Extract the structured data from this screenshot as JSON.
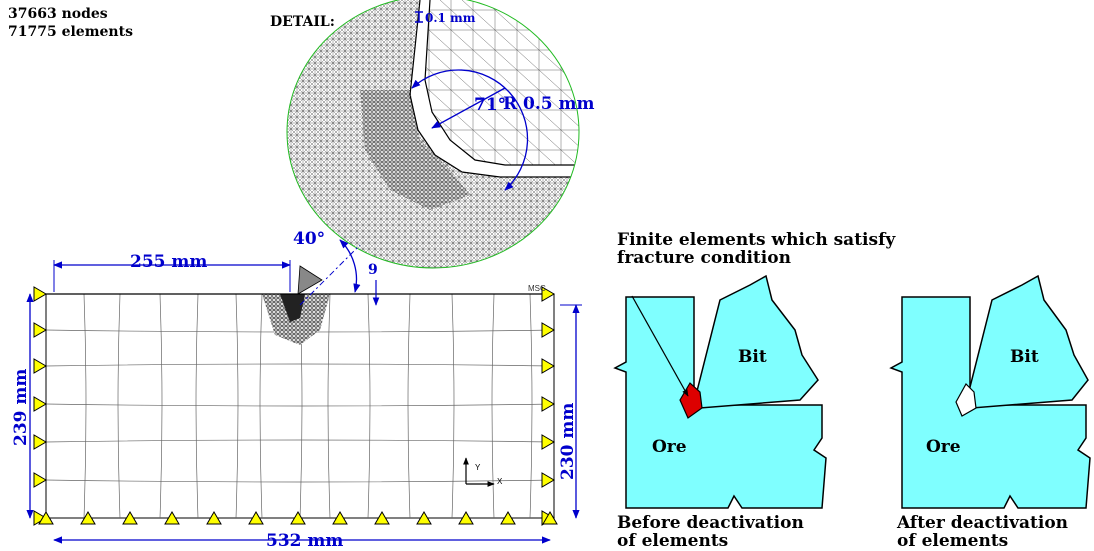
{
  "stats": {
    "nodes": "37663 nodes",
    "elements": "71775 elements"
  },
  "detail": {
    "title": "DETAIL:",
    "dim_small": "0.1 mm",
    "angle": "71°",
    "radius": "R 0.5 mm"
  },
  "mesh_model": {
    "angle": "40°",
    "width_top": "255 mm",
    "width_bottom": "532 mm",
    "height_left": "239 mm",
    "height_right": "230 mm",
    "offset": "9",
    "logo": "MSC",
    "axis_y": "Y",
    "axis_x": "X"
  },
  "fracture": {
    "caption": [
      "Finite elements which satisfy",
      "fracture condition"
    ],
    "before": {
      "bit": "Bit",
      "ore": "Ore",
      "caption": [
        "Before deactivation",
        "of elements"
      ]
    },
    "after": {
      "bit": "Bit",
      "ore": "Ore",
      "caption": [
        "After deactivation",
        "of elements"
      ]
    }
  },
  "colors": {
    "dimension": "#0000cc",
    "material": "#7fffff",
    "fractured": "#dd0000",
    "support": "#ffff00"
  }
}
